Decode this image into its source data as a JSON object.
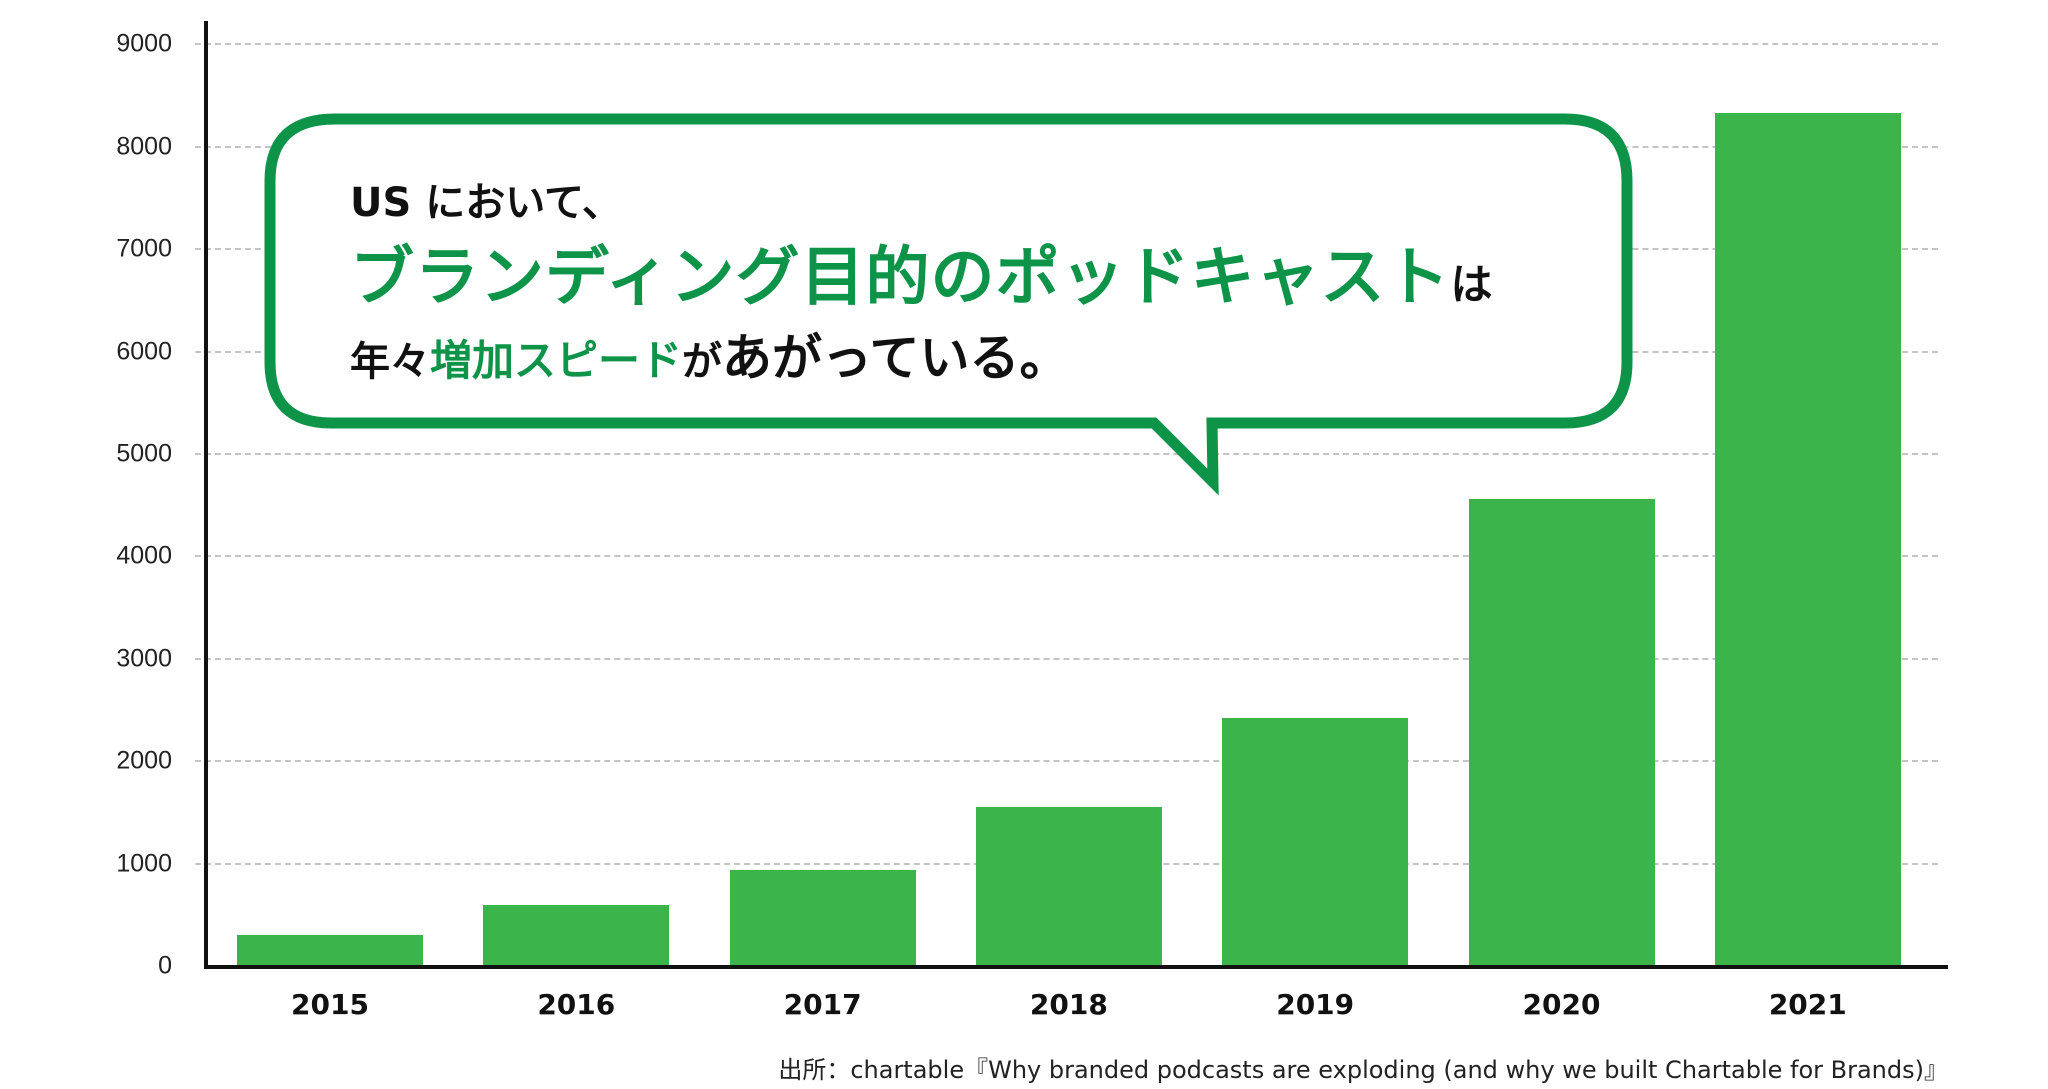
{
  "chart_data": {
    "type": "bar",
    "title": "USにおいて、ブランディング目的のポッドキャストは年々増加スピードがあがっている。",
    "categories": [
      "2015",
      "2016",
      "2017",
      "2018",
      "2019",
      "2020",
      "2021"
    ],
    "values": [
      300,
      600,
      940,
      1550,
      2420,
      4560,
      8330
    ],
    "xlabel": "",
    "ylabel": "",
    "ylim": [
      0,
      9000
    ],
    "yticks": [
      0,
      1000,
      2000,
      3000,
      4000,
      5000,
      6000,
      7000,
      8000,
      9000
    ],
    "grid": true,
    "legend": null,
    "bar_color": "#3bb44a",
    "source": "出所：chartable『Why branded podcasts are exploding (and why we built Chartable for Brands)』"
  },
  "callout": {
    "line1": "US において、",
    "line2_green": "ブランディング目的のポッドキャスト",
    "line2_tail": "は",
    "line3_a": "年々",
    "line3_green": "増加スピード",
    "line3_b": "が",
    "line3_c": "あがっている。",
    "border_color": "#0e9449"
  },
  "source_note": "出所：chartable『Why branded podcasts are exploding (and why we built Chartable for Brands)』"
}
